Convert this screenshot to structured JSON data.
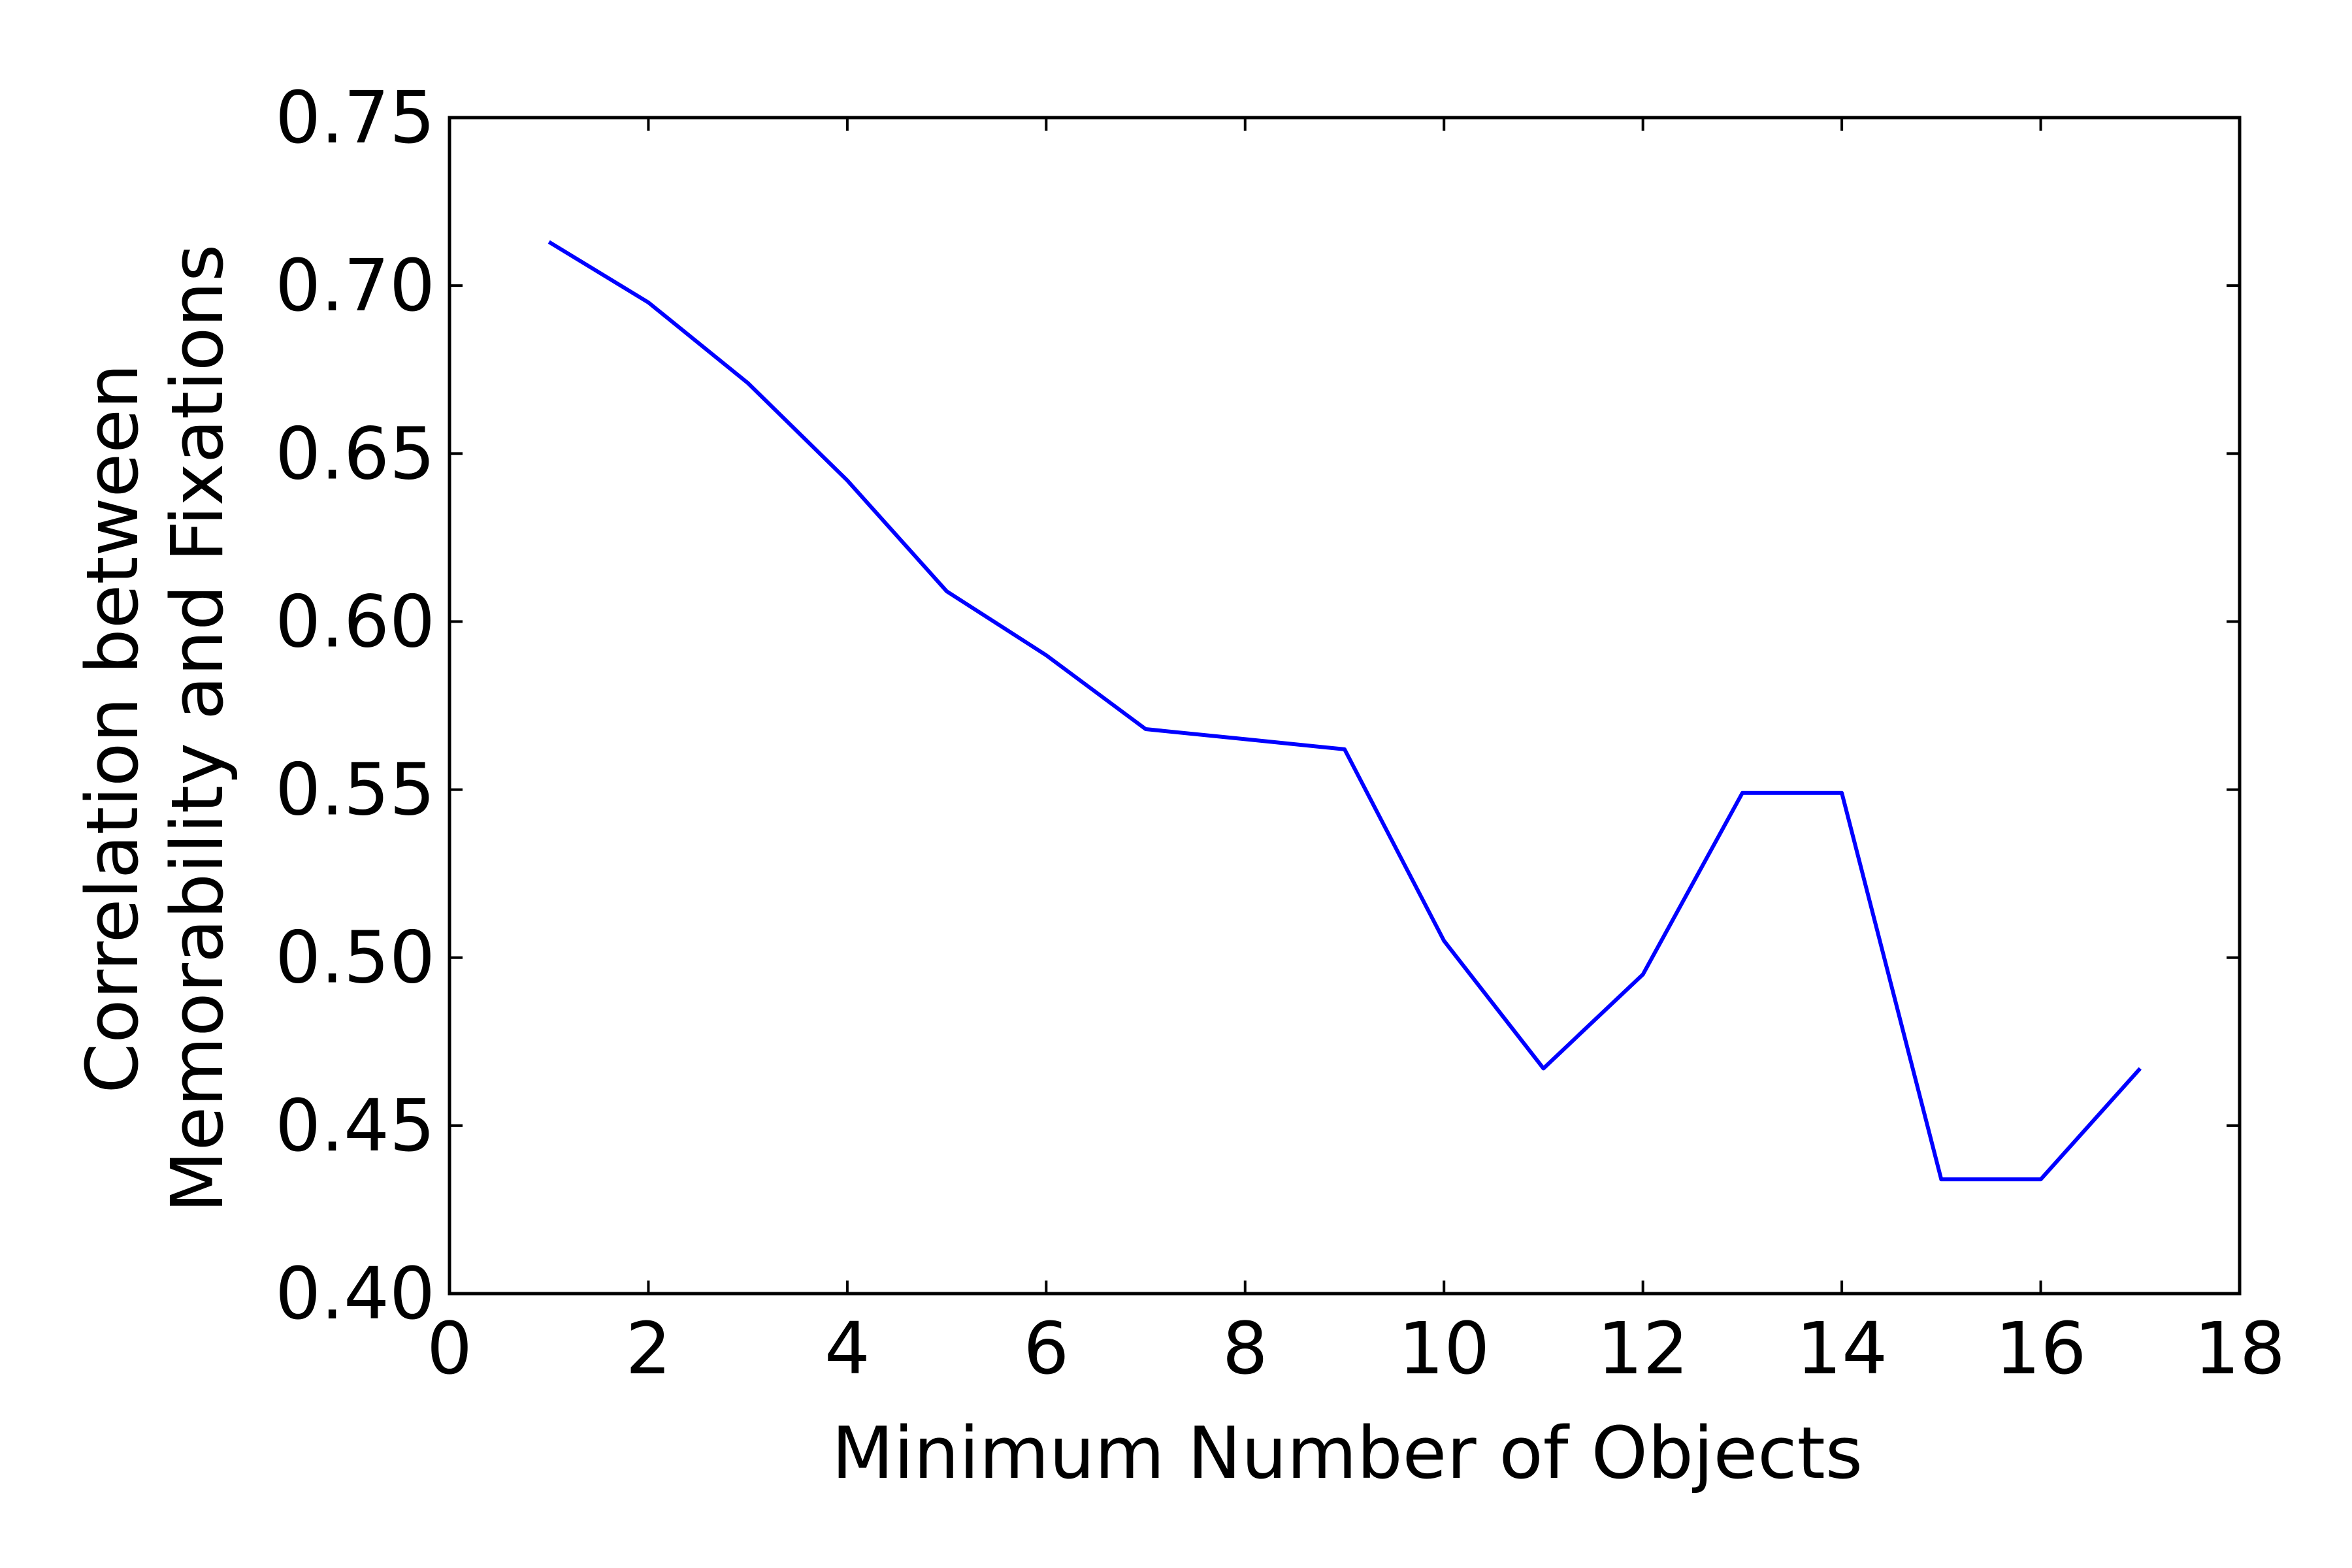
{
  "chart_data": {
    "type": "line",
    "title": "",
    "xlabel": "Minimum Number of Objects",
    "ylabel_lines": [
      "Correlation between",
      "Memorability and Fixations"
    ],
    "xlim": [
      0,
      18
    ],
    "ylim": [
      0.4,
      0.75
    ],
    "xticks": [
      "0",
      "2",
      "4",
      "6",
      "8",
      "10",
      "12",
      "14",
      "16",
      "18"
    ],
    "yticks": [
      "0.40",
      "0.45",
      "0.50",
      "0.55",
      "0.60",
      "0.65",
      "0.70",
      "0.75"
    ],
    "grid": false,
    "series": [
      {
        "color": "#0000ff",
        "x": [
          1,
          2,
          3,
          4,
          5,
          6,
          7,
          8,
          9,
          10,
          11,
          12,
          13,
          14,
          15,
          16,
          17
        ],
        "y": [
          0.713,
          0.695,
          0.671,
          0.642,
          0.609,
          0.59,
          0.568,
          0.565,
          0.562,
          0.505,
          0.467,
          0.495,
          0.549,
          0.549,
          0.434,
          0.434,
          0.467
        ]
      }
    ]
  }
}
